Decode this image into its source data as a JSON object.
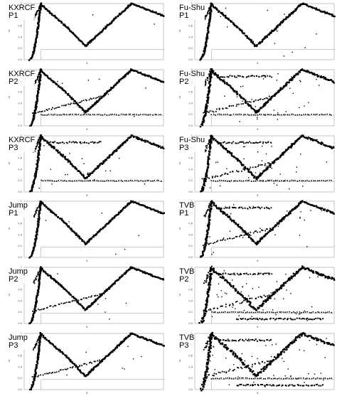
{
  "figure": {
    "xlabel": "x",
    "ylabel": "y"
  },
  "chart_data": [
    {
      "type": "scatter",
      "method": "KXRCF",
      "variant": "P1",
      "noise": 0.05,
      "spurious": []
    },
    {
      "type": "scatter",
      "method": "Fu-Shu",
      "variant": "P1",
      "noise": 0.2,
      "spurious": []
    },
    {
      "type": "scatter",
      "method": "KXRCF",
      "variant": "P2",
      "noise": 0.1,
      "spurious": [
        "reflected-shock",
        "mach-stem-line"
      ]
    },
    {
      "type": "scatter",
      "method": "Fu-Shu",
      "variant": "P2",
      "noise": 0.45,
      "spurious": [
        "reflected-shock",
        "mach-stem-line",
        "top-bar"
      ]
    },
    {
      "type": "scatter",
      "method": "KXRCF",
      "variant": "P3",
      "noise": 0.25,
      "spurious": [
        "mach-stem-line",
        "top-bar"
      ]
    },
    {
      "type": "scatter",
      "method": "Fu-Shu",
      "variant": "P3",
      "noise": 0.5,
      "spurious": [
        "reflected-shock",
        "mach-stem-line",
        "top-bar"
      ]
    },
    {
      "type": "scatter",
      "method": "Jump",
      "variant": "P1",
      "noise": 0.1,
      "spurious": []
    },
    {
      "type": "scatter",
      "method": "TVB",
      "variant": "P1",
      "noise": 0.35,
      "spurious": [
        "reflected-shock",
        "top-bar"
      ]
    },
    {
      "type": "scatter",
      "method": "Jump",
      "variant": "P2",
      "noise": 0.1,
      "spurious": [
        "reflected-shock"
      ]
    },
    {
      "type": "scatter",
      "method": "TVB",
      "variant": "P2",
      "noise": 0.7,
      "spurious": [
        "reflected-shock",
        "mach-stem-line",
        "top-bar",
        "bottom-band"
      ]
    },
    {
      "type": "scatter",
      "method": "Jump",
      "variant": "P3",
      "noise": 0.1,
      "spurious": [
        "reflected-shock"
      ]
    },
    {
      "type": "scatter",
      "method": "TVB",
      "variant": "P3",
      "noise": 0.8,
      "spurious": [
        "reflected-shock",
        "mach-stem-line",
        "top-bar",
        "bottom-band"
      ]
    }
  ]
}
